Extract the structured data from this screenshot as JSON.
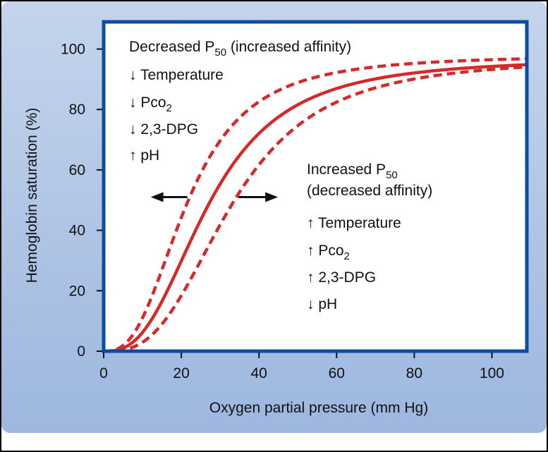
{
  "colors": {
    "panel_top": "#c4d4ec",
    "panel_bottom": "#9db7df",
    "plot_border": "#0b4da2",
    "curve": "#d42a2a",
    "arrow": "#111111"
  },
  "chart_data": {
    "type": "line",
    "xlabel": "Oxygen partial pressure (mm Hg)",
    "ylabel": "Hemoglobin saturation (%)",
    "xlim": [
      0,
      109
    ],
    "ylim": [
      0,
      109
    ],
    "x_ticks": [
      "0",
      "20",
      "40",
      "60",
      "80",
      "100"
    ],
    "y_ticks": [
      "0",
      "20",
      "40",
      "60",
      "80",
      "100"
    ],
    "grid": false,
    "series": [
      {
        "style": "dashed",
        "p50": 21.5,
        "n": 2.7,
        "max": 98
      },
      {
        "style": "solid",
        "p50": 27,
        "n": 2.7,
        "max": 97
      },
      {
        "style": "dashed",
        "p50": 33,
        "n": 2.9,
        "max": 97
      }
    ],
    "shift_arrow": {
      "y": 51,
      "x_from": 23,
      "x_to": 34
    },
    "annotations": {
      "left": {
        "title_pre": "Decreased P",
        "title_sub": "50",
        "title_post": " (increased affinity)",
        "items": [
          {
            "arrow": "↓",
            "label": "Temperature"
          },
          {
            "arrow": "↓",
            "label": "Pco",
            "label_sub": "2"
          },
          {
            "arrow": "↓",
            "label": "2,3-DPG"
          },
          {
            "arrow": "↑",
            "label": "pH"
          }
        ]
      },
      "right": {
        "title_pre": "Increased P",
        "title_sub": "50",
        "title_line2": "(decreased affinity)",
        "items": [
          {
            "arrow": "↑",
            "label": "Temperature"
          },
          {
            "arrow": "↑",
            "label": "Pco",
            "label_sub": "2"
          },
          {
            "arrow": "↑",
            "label": "2,3-DPG"
          },
          {
            "arrow": "↓",
            "label": "pH"
          }
        ]
      }
    }
  }
}
